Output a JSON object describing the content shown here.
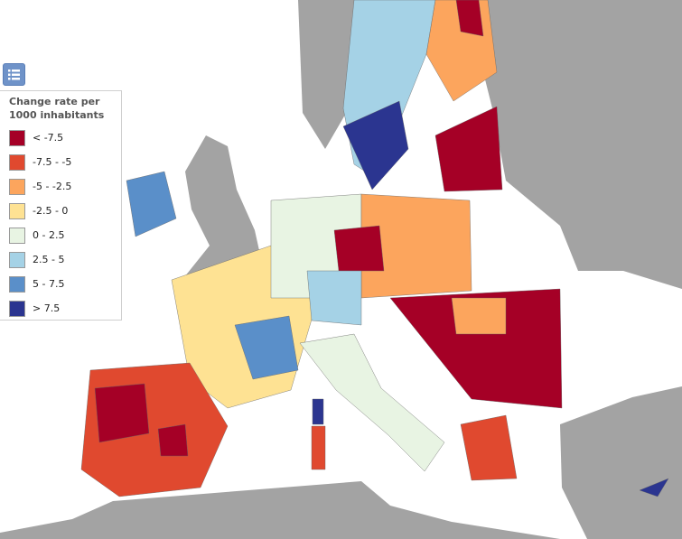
{
  "legend": {
    "title": "Change rate per 1000 inhabitants",
    "items": [
      {
        "label": "< -7.5",
        "color": "#a50026"
      },
      {
        "label": "-7.5 - -5",
        "color": "#e0492f"
      },
      {
        "label": "-5 - -2.5",
        "color": "#fca55d"
      },
      {
        "label": "-2.5 - 0",
        "color": "#fee293"
      },
      {
        "label": "0 - 2.5",
        "color": "#e8f4e3"
      },
      {
        "label": "2.5 - 5",
        "color": "#a5d2e6"
      },
      {
        "label": "5 - 7.5",
        "color": "#5a8fc9"
      },
      {
        "label": "> 7.5",
        "color": "#2b3590"
      }
    ]
  }
}
